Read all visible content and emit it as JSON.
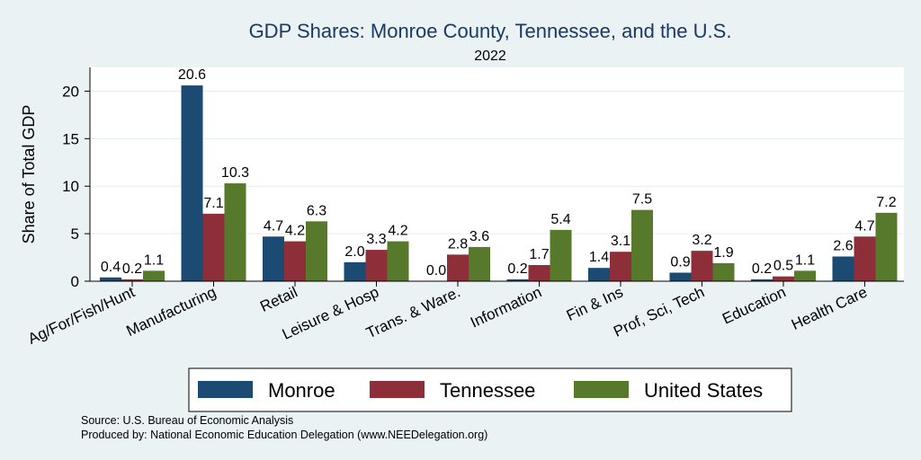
{
  "chart_data": {
    "type": "bar",
    "title": "GDP Shares: Monroe County, Tennessee, and the U.S.",
    "subtitle": "2022",
    "ylabel": "Share of Total GDP",
    "xlabel": "",
    "ylim": [
      0,
      22.5
    ],
    "yticks": [
      0,
      5,
      10,
      15,
      20
    ],
    "grid": true,
    "legend_position": "bottom",
    "categories": [
      "Ag/For/Fish/Hunt",
      "Manufacturing",
      "Retail",
      "Leisure & Hosp",
      "Trans. & Ware.",
      "Information",
      "Fin & Ins",
      "Prof, Sci, Tech",
      "Education",
      "Health Care"
    ],
    "series": [
      {
        "name": "Monroe",
        "color": "#1b4a72",
        "values": [
          0.4,
          20.6,
          4.7,
          2.0,
          0.0,
          0.2,
          1.4,
          0.9,
          0.2,
          2.6
        ],
        "labels": [
          "0.4",
          "20.6",
          "4.7",
          "2.0",
          "0.0",
          "0.2",
          "1.4",
          "0.9",
          "0.2",
          "2.6"
        ]
      },
      {
        "name": "Tennessee",
        "color": "#8e2e38",
        "values": [
          0.2,
          7.1,
          4.2,
          3.3,
          2.8,
          1.7,
          3.1,
          3.2,
          0.5,
          4.7
        ],
        "labels": [
          "0.2",
          "7.1",
          "4.2",
          "3.3",
          "2.8",
          "1.7",
          "3.1",
          "3.2",
          "0.5",
          "4.7"
        ]
      },
      {
        "name": "United States",
        "color": "#57792b",
        "values": [
          1.1,
          10.3,
          6.3,
          4.2,
          3.6,
          5.4,
          7.5,
          1.9,
          1.1,
          7.2
        ],
        "labels": [
          "1.1",
          "10.3",
          "6.3",
          "4.2",
          "3.6",
          "5.4",
          "7.5",
          "1.9",
          "1.1",
          "7.2"
        ]
      }
    ]
  },
  "footer": {
    "source": "Source: U.S. Bureau of Economic Analysis",
    "produced_by": "Produced by: National Economic Education Delegation (www.NEEDelegation.org)"
  }
}
